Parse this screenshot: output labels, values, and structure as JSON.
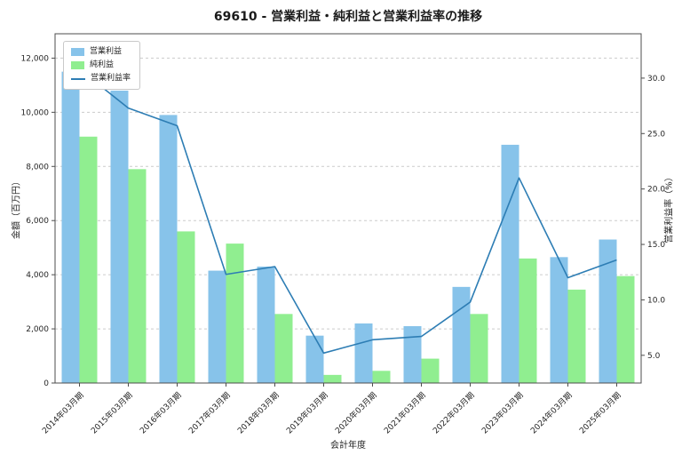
{
  "colors": {
    "bar_operating_profit": "#87c3ea",
    "bar_net_profit": "#90ee90",
    "line_operating_margin": "#2d7db4",
    "grid": "#cccccc",
    "spine": "#4d4d4d",
    "text": "#262626",
    "background": "#ffffff"
  },
  "chart_data": {
    "type": "bar",
    "title": "69610 - 営業利益・純利益と営業利益率の推移",
    "xlabel": "会計年度",
    "ylabel_left": "金額（百万円）",
    "ylabel_right": "営業利益率（%）",
    "legend_position": "top-left",
    "grid": "horizontal-dashed",
    "categories": [
      "2014年03月期",
      "2015年03月期",
      "2016年03月期",
      "2017年03月期",
      "2018年03月期",
      "2019年03月期",
      "2020年03月期",
      "2021年03月期",
      "2022年03月期",
      "2023年03月期",
      "2024年03月期",
      "2025年03月期"
    ],
    "series": [
      {
        "name": "営業利益",
        "key": "operating-profit",
        "type": "bar",
        "axis": "left",
        "color": "#87c3ea",
        "values": [
          11500,
          10800,
          9900,
          4150,
          4300,
          1750,
          2200,
          2100,
          3550,
          8800,
          4650,
          5300
        ]
      },
      {
        "name": "純利益",
        "key": "net-profit",
        "type": "bar",
        "axis": "left",
        "color": "#90ee90",
        "values": [
          9100,
          7900,
          5600,
          5150,
          2550,
          300,
          450,
          900,
          2550,
          4600,
          3450,
          3950
        ]
      },
      {
        "name": "営業利益率",
        "key": "operating-margin",
        "type": "line",
        "axis": "right",
        "color": "#2d7db4",
        "values": [
          30.8,
          27.3,
          25.7,
          12.3,
          13.0,
          5.2,
          6.4,
          6.7,
          9.8,
          21.0,
          12.0,
          13.6
        ]
      }
    ],
    "left_ylim": [
      0,
      12900
    ],
    "right_ylim": [
      2.5,
      34.0
    ],
    "left_ticks": [
      0,
      2000,
      4000,
      6000,
      8000,
      10000,
      12000
    ],
    "right_ticks": [
      5.0,
      10.0,
      15.0,
      20.0,
      25.0,
      30.0
    ]
  }
}
